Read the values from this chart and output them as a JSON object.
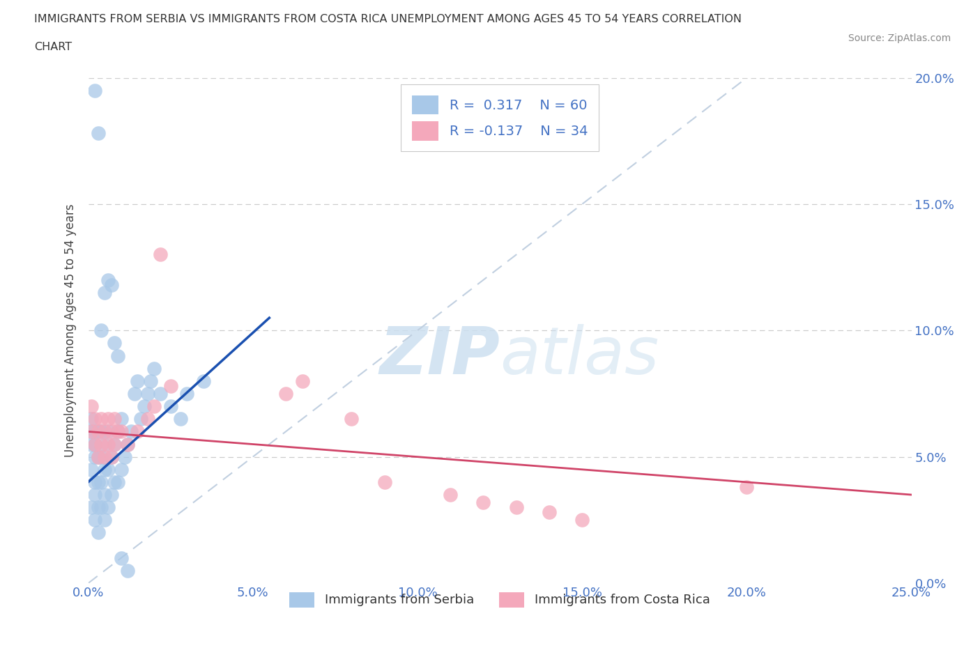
{
  "title_line1": "IMMIGRANTS FROM SERBIA VS IMMIGRANTS FROM COSTA RICA UNEMPLOYMENT AMONG AGES 45 TO 54 YEARS CORRELATION",
  "title_line2": "CHART",
  "source": "Source: ZipAtlas.com",
  "ylabel": "Unemployment Among Ages 45 to 54 years",
  "xlim": [
    0.0,
    0.25
  ],
  "ylim": [
    0.0,
    0.2
  ],
  "xticks": [
    0.0,
    0.05,
    0.1,
    0.15,
    0.2,
    0.25
  ],
  "yticks": [
    0.0,
    0.05,
    0.1,
    0.15,
    0.2
  ],
  "xtick_labels": [
    "0.0%",
    "5.0%",
    "10.0%",
    "15.0%",
    "20.0%",
    "25.0%"
  ],
  "ytick_labels": [
    "0.0%",
    "5.0%",
    "10.0%",
    "15.0%",
    "20.0%"
  ],
  "serbia_color": "#a8c8e8",
  "costa_rica_color": "#f4a8bb",
  "serbia_R": 0.317,
  "serbia_N": 60,
  "costa_rica_R": -0.137,
  "costa_rica_N": 34,
  "serbia_trend_color": "#1a50b0",
  "costa_rica_trend_color": "#d04468",
  "diag_line_color": "#c0cfe0",
  "watermark_color": "#cde0f0",
  "tick_color": "#4472c4",
  "grid_color": "#cccccc",
  "serbia_x": [
    0.001,
    0.001,
    0.001,
    0.001,
    0.001,
    0.002,
    0.002,
    0.002,
    0.002,
    0.002,
    0.002,
    0.003,
    0.003,
    0.003,
    0.003,
    0.003,
    0.004,
    0.004,
    0.004,
    0.004,
    0.005,
    0.005,
    0.005,
    0.005,
    0.006,
    0.006,
    0.006,
    0.007,
    0.007,
    0.008,
    0.008,
    0.009,
    0.009,
    0.01,
    0.01,
    0.011,
    0.012,
    0.013,
    0.014,
    0.015,
    0.016,
    0.017,
    0.018,
    0.019,
    0.02,
    0.022,
    0.025,
    0.028,
    0.03,
    0.035,
    0.002,
    0.003,
    0.004,
    0.005,
    0.006,
    0.007,
    0.008,
    0.009,
    0.01,
    0.012
  ],
  "serbia_y": [
    0.03,
    0.045,
    0.055,
    0.06,
    0.065,
    0.025,
    0.035,
    0.04,
    0.05,
    0.055,
    0.06,
    0.02,
    0.03,
    0.04,
    0.05,
    0.06,
    0.03,
    0.04,
    0.05,
    0.06,
    0.025,
    0.035,
    0.045,
    0.055,
    0.03,
    0.045,
    0.06,
    0.035,
    0.05,
    0.04,
    0.055,
    0.04,
    0.06,
    0.045,
    0.065,
    0.05,
    0.055,
    0.06,
    0.075,
    0.08,
    0.065,
    0.07,
    0.075,
    0.08,
    0.085,
    0.075,
    0.07,
    0.065,
    0.075,
    0.08,
    0.195,
    0.178,
    0.1,
    0.115,
    0.12,
    0.118,
    0.095,
    0.09,
    0.01,
    0.005
  ],
  "costa_rica_x": [
    0.001,
    0.001,
    0.002,
    0.002,
    0.003,
    0.003,
    0.004,
    0.004,
    0.005,
    0.005,
    0.006,
    0.006,
    0.007,
    0.007,
    0.008,
    0.008,
    0.009,
    0.01,
    0.012,
    0.015,
    0.018,
    0.02,
    0.022,
    0.025,
    0.06,
    0.065,
    0.08,
    0.09,
    0.11,
    0.12,
    0.13,
    0.14,
    0.15,
    0.2
  ],
  "costa_rica_y": [
    0.06,
    0.07,
    0.055,
    0.065,
    0.05,
    0.06,
    0.055,
    0.065,
    0.05,
    0.06,
    0.055,
    0.065,
    0.05,
    0.06,
    0.055,
    0.065,
    0.06,
    0.06,
    0.055,
    0.06,
    0.065,
    0.07,
    0.13,
    0.078,
    0.075,
    0.08,
    0.065,
    0.04,
    0.035,
    0.032,
    0.03,
    0.028,
    0.025,
    0.038
  ],
  "serbia_trend_x": [
    0.0,
    0.055
  ],
  "serbia_trend_y": [
    0.04,
    0.105
  ],
  "costa_rica_trend_x": [
    0.0,
    0.25
  ],
  "costa_rica_trend_y": [
    0.06,
    0.035
  ]
}
